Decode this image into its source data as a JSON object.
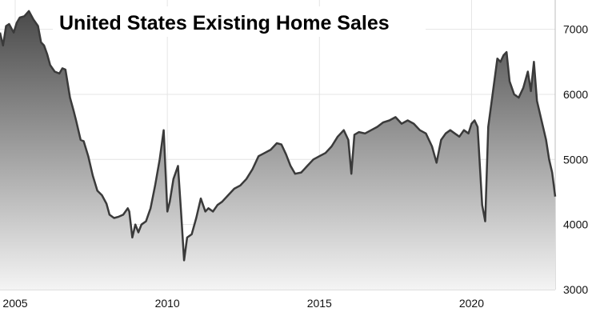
{
  "chart_data": {
    "type": "area",
    "title": "United States Existing Home Sales",
    "xlabel": "",
    "ylabel": "",
    "x_ticks": [
      2005,
      2010,
      2015,
      2020
    ],
    "y_ticks": [
      3000,
      4000,
      5000,
      6000,
      7000
    ],
    "xlim": [
      2004.5,
      2022.75
    ],
    "ylim": [
      3000,
      7450
    ],
    "grid": true,
    "legend": "none",
    "fill_top_color": "#4a4a4a",
    "fill_bottom_color": "#f4f4f4",
    "line_color": "#3a3a3a",
    "series": [
      {
        "x": [
          2004.5,
          2004.6,
          2004.7,
          2004.8,
          2004.95,
          2005.05,
          2005.15,
          2005.3,
          2005.45,
          2005.6,
          2005.75,
          2005.85,
          2005.95,
          2006.05,
          2006.15,
          2006.3,
          2006.45,
          2006.55,
          2006.65,
          2006.8,
          2006.92,
          2007.0,
          2007.1,
          2007.15,
          2007.25,
          2007.4,
          2007.55,
          2007.7,
          2007.85,
          2008.0,
          2008.1,
          2008.25,
          2008.4,
          2008.55,
          2008.7,
          2008.75,
          2008.85,
          2008.95,
          2009.05,
          2009.15,
          2009.3,
          2009.45,
          2009.6,
          2009.75,
          2009.88,
          2010.0,
          2010.08,
          2010.2,
          2010.35,
          2010.45,
          2010.55,
          2010.65,
          2010.8,
          2010.95,
          2011.1,
          2011.25,
          2011.35,
          2011.5,
          2011.65,
          2011.8,
          2012.0,
          2012.2,
          2012.4,
          2012.6,
          2012.8,
          2013.0,
          2013.2,
          2013.4,
          2013.6,
          2013.75,
          2013.9,
          2014.05,
          2014.2,
          2014.4,
          2014.6,
          2014.8,
          2015.0,
          2015.2,
          2015.4,
          2015.6,
          2015.8,
          2015.95,
          2016.05,
          2016.15,
          2016.3,
          2016.5,
          2016.7,
          2016.9,
          2017.1,
          2017.3,
          2017.5,
          2017.7,
          2017.9,
          2018.1,
          2018.3,
          2018.5,
          2018.7,
          2018.85,
          2019.0,
          2019.15,
          2019.3,
          2019.45,
          2019.6,
          2019.75,
          2019.9,
          2020.0,
          2020.1,
          2020.2,
          2020.35,
          2020.45,
          2020.55,
          2020.65,
          2020.75,
          2020.85,
          2020.95,
          2021.05,
          2021.15,
          2021.25,
          2021.4,
          2021.55,
          2021.7,
          2021.85,
          2021.95,
          2022.05,
          2022.15,
          2022.25,
          2022.35,
          2022.45,
          2022.55,
          2022.65,
          2022.75
        ],
        "y": [
          6950,
          6750,
          7050,
          7080,
          6950,
          7100,
          7180,
          7200,
          7280,
          7150,
          7050,
          6800,
          6750,
          6620,
          6450,
          6350,
          6320,
          6400,
          6380,
          5950,
          5750,
          5600,
          5400,
          5300,
          5280,
          5050,
          4750,
          4520,
          4450,
          4320,
          4150,
          4100,
          4120,
          4150,
          4250,
          4200,
          3800,
          4000,
          3880,
          4000,
          4050,
          4250,
          4600,
          5000,
          5450,
          4200,
          4350,
          4700,
          4900,
          4200,
          3450,
          3800,
          3850,
          4100,
          4400,
          4200,
          4250,
          4200,
          4300,
          4350,
          4450,
          4550,
          4600,
          4700,
          4850,
          5050,
          5100,
          5150,
          5250,
          5230,
          5080,
          4900,
          4780,
          4800,
          4900,
          5000,
          5050,
          5100,
          5200,
          5350,
          5450,
          5300,
          4780,
          5380,
          5420,
          5400,
          5450,
          5500,
          5570,
          5600,
          5650,
          5550,
          5600,
          5550,
          5450,
          5400,
          5200,
          4950,
          5300,
          5400,
          5450,
          5400,
          5350,
          5450,
          5400,
          5550,
          5600,
          5500,
          4300,
          4050,
          5500,
          5850,
          6200,
          6550,
          6500,
          6600,
          6650,
          6200,
          6000,
          5950,
          6100,
          6350,
          6050,
          6500,
          5900,
          5700,
          5500,
          5300,
          5000,
          4800,
          4430
        ]
      }
    ]
  }
}
